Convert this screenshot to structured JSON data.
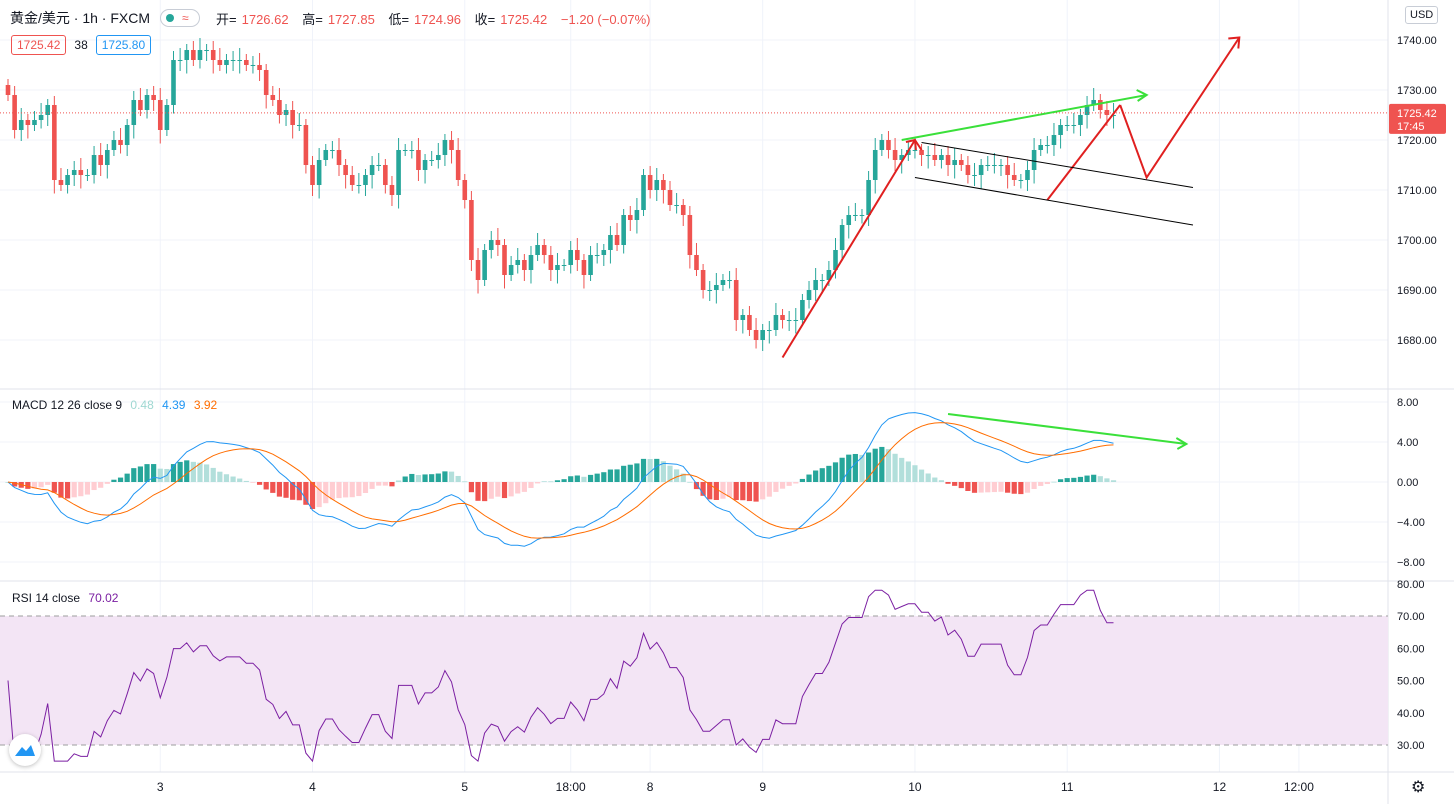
{
  "header": {
    "symbol": "黄金/美元 · 1h · FXCM",
    "open_label": "开=",
    "open": "1726.62",
    "high_label": "高=",
    "high": "1727.85",
    "low_label": "低=",
    "low": "1724.96",
    "close_label": "收=",
    "close": "1725.42",
    "change": "−1.20 (−0.07%)"
  },
  "bid": "1725.42",
  "spread": "38",
  "ask": "1725.80",
  "currency": "USD",
  "price_tag": {
    "price": "1725.42",
    "countdown": "17:45"
  },
  "macd_legend": {
    "name": "MACD 12 26 close 9",
    "hist": "0.48",
    "macd": "4.39",
    "signal": "3.92"
  },
  "rsi_legend": {
    "name": "RSI 14 close",
    "value": "70.02"
  },
  "colors": {
    "up": "#26a69a",
    "down": "#ef5350",
    "macd_line": "#2196f3",
    "signal_line": "#ff6d00",
    "rsi_line": "#7b1fa2",
    "rsi_band": "#f3e5f5",
    "arrow_red": "#e02020",
    "arrow_green": "#3ae03a",
    "channel": "#000000"
  },
  "chart_data": [
    {
      "type": "candlestick",
      "title": "黄金/美元 · 1h · FXCM",
      "ylim": [
        1673,
        1745
      ],
      "y_ticks": [
        1680,
        1690,
        1700,
        1710,
        1720,
        1730,
        1740
      ],
      "y_tick_labels": [
        "1680.00",
        "1690.00",
        "1700.00",
        "1710.00",
        "1720.00",
        "1730.00",
        "1740.00"
      ],
      "x_tick_labels": [
        "3",
        "4",
        "5",
        "18:00",
        "8",
        "9",
        "10",
        "11",
        "12",
        "12:00"
      ],
      "x_tick_index": [
        23,
        46,
        69,
        85,
        97,
        114,
        137,
        160,
        183,
        195
      ],
      "last_price": 1725.42,
      "close": [
        1729,
        1722,
        1724,
        1723,
        1724,
        1725,
        1727,
        1712,
        1711,
        1713,
        1714,
        1713,
        1713,
        1717,
        1715,
        1718,
        1720,
        1719,
        1723,
        1728,
        1726,
        1729,
        1728,
        1722,
        1727,
        1736,
        1736,
        1738,
        1736,
        1738,
        1738,
        1736,
        1735,
        1736,
        1736,
        1736,
        1735,
        1735,
        1734,
        1729,
        1728,
        1725,
        1726,
        1723,
        1723,
        1715,
        1711,
        1716,
        1718,
        1718,
        1715,
        1713,
        1711,
        1711,
        1713,
        1715,
        1715,
        1711,
        1709,
        1718,
        1718,
        1718,
        1714,
        1716,
        1716,
        1717,
        1720,
        1718,
        1712,
        1708,
        1696,
        1692,
        1698,
        1700,
        1699,
        1693,
        1695,
        1696,
        1694,
        1697,
        1699,
        1697,
        1694,
        1695,
        1695,
        1698,
        1696,
        1693,
        1697,
        1697,
        1698,
        1701,
        1699,
        1705,
        1704,
        1706,
        1713,
        1710,
        1712,
        1710,
        1707,
        1707,
        1705,
        1697,
        1694,
        1690,
        1690,
        1691,
        1692,
        1692,
        1684,
        1685,
        1682,
        1680,
        1682,
        1682,
        1685,
        1684,
        1684,
        1684,
        1688,
        1690,
        1692,
        1692,
        1694,
        1698,
        1703,
        1705,
        1705,
        1705,
        1712,
        1718,
        1720,
        1718,
        1716,
        1717,
        1718,
        1718,
        1717,
        1717,
        1716,
        1717,
        1715,
        1716,
        1715,
        1713,
        1713,
        1715,
        1715,
        1715,
        1715,
        1713,
        1712,
        1712,
        1714,
        1718,
        1719,
        1719,
        1721,
        1723,
        1723,
        1723,
        1725,
        1727,
        1728,
        1726,
        1725,
        1725
      ],
      "high_extra": 1.2,
      "low_extra": 1.2
    },
    {
      "type": "line",
      "title": "MACD 12 26 close 9",
      "ylim": [
        -9.8,
        9.2
      ],
      "y_ticks": [
        -8,
        -4,
        0,
        4,
        8
      ],
      "y_tick_labels": [
        "−8.00",
        "−4.00",
        "0.00",
        "4.00",
        "8.00"
      ],
      "series": [
        {
          "name": "MACD",
          "key": "macd"
        },
        {
          "name": "Signal",
          "key": "signal"
        },
        {
          "name": "Histogram",
          "key": "hist"
        }
      ]
    },
    {
      "type": "line",
      "title": "RSI 14 close",
      "ylim": [
        24,
        80
      ],
      "y_ticks": [
        30,
        40,
        50,
        60,
        70,
        80
      ],
      "y_tick_labels": [
        "30.00",
        "40.00",
        "50.00",
        "60.00",
        "70.00",
        "80.00"
      ],
      "bands": [
        30,
        70
      ],
      "series": [
        {
          "name": "RSI",
          "key": "rsi"
        }
      ]
    }
  ]
}
